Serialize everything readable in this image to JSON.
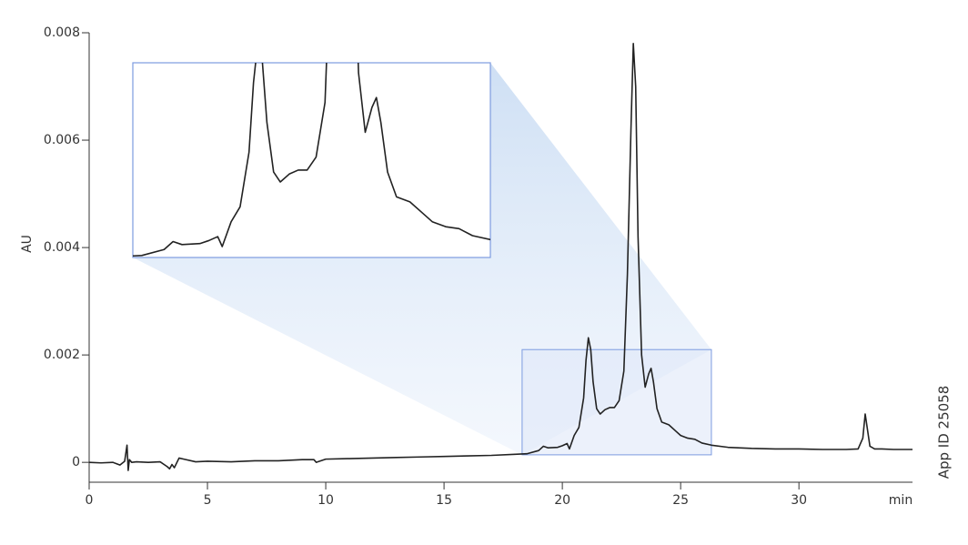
{
  "chart_data": {
    "type": "line",
    "ylabel": "AU",
    "xlabel": "min",
    "annotation": "App ID 25058",
    "x": [
      0,
      0.5,
      1,
      1.3,
      1.5,
      1.6,
      1.65,
      1.7,
      1.8,
      2,
      2.5,
      3,
      3.3,
      3.4,
      3.5,
      3.6,
      3.8,
      4,
      4.5,
      5,
      6,
      7,
      8,
      9,
      9.5,
      9.6,
      10,
      11,
      12,
      13,
      14,
      15,
      16,
      17,
      18,
      18.5,
      19,
      19.2,
      19.4,
      19.8,
      20,
      20.2,
      20.3,
      20.5,
      20.7,
      20.9,
      21.0,
      21.1,
      21.2,
      21.3,
      21.45,
      21.6,
      21.8,
      22.0,
      22.2,
      22.4,
      22.6,
      22.75,
      22.9,
      23.0,
      23.1,
      23.2,
      23.35,
      23.5,
      23.65,
      23.75,
      23.85,
      24.0,
      24.2,
      24.5,
      24.8,
      25.0,
      25.3,
      25.6,
      25.9,
      26.3,
      27,
      28,
      29,
      30,
      31,
      32,
      32.5,
      32.7,
      32.8,
      32.9,
      33.0,
      33.2,
      33.5,
      34,
      34.8
    ],
    "series": [
      {
        "color": "#222222",
        "values": [
          0,
          -1e-05,
          0,
          -5e-05,
          2e-05,
          0.00032,
          -0.00015,
          5e-05,
          0,
          1e-05,
          0,
          1e-05,
          -8e-05,
          -0.00012,
          -4e-05,
          -0.0001,
          8e-05,
          6e-05,
          1e-05,
          2e-05,
          1e-05,
          3e-05,
          3e-05,
          5e-05,
          5e-05,
          0,
          6e-05,
          7e-05,
          8e-05,
          9e-05,
          0.0001,
          0.00011,
          0.00012,
          0.00013,
          0.00015,
          0.00016,
          0.00022,
          0.0003,
          0.00027,
          0.00028,
          0.00031,
          0.00035,
          0.00025,
          0.0005,
          0.00065,
          0.0012,
          0.0019,
          0.00232,
          0.0021,
          0.0015,
          0.001,
          0.0009,
          0.00098,
          0.00102,
          0.00102,
          0.00115,
          0.0017,
          0.0035,
          0.0062,
          0.0078,
          0.007,
          0.0042,
          0.002,
          0.0014,
          0.00165,
          0.00175,
          0.0015,
          0.001,
          0.00075,
          0.0007,
          0.00058,
          0.0005,
          0.00045,
          0.00043,
          0.00036,
          0.00032,
          0.00028,
          0.00026,
          0.00025,
          0.00025,
          0.00024,
          0.00024,
          0.00025,
          0.00045,
          0.0009,
          0.0006,
          0.0003,
          0.00025,
          0.00025,
          0.00024,
          0.00024
        ]
      }
    ],
    "xlim": [
      0,
      34.8
    ],
    "ylim": [
      -0.00037,
      0.008
    ],
    "xticks": [
      0,
      5,
      10,
      15,
      20,
      25,
      30
    ],
    "yticks": [
      0,
      0.002,
      0.004,
      0.006,
      0.008
    ],
    "inset": {
      "xlim": [
        18.3,
        26.3
      ],
      "ylim": [
        0.00014,
        0.0021
      ]
    }
  }
}
